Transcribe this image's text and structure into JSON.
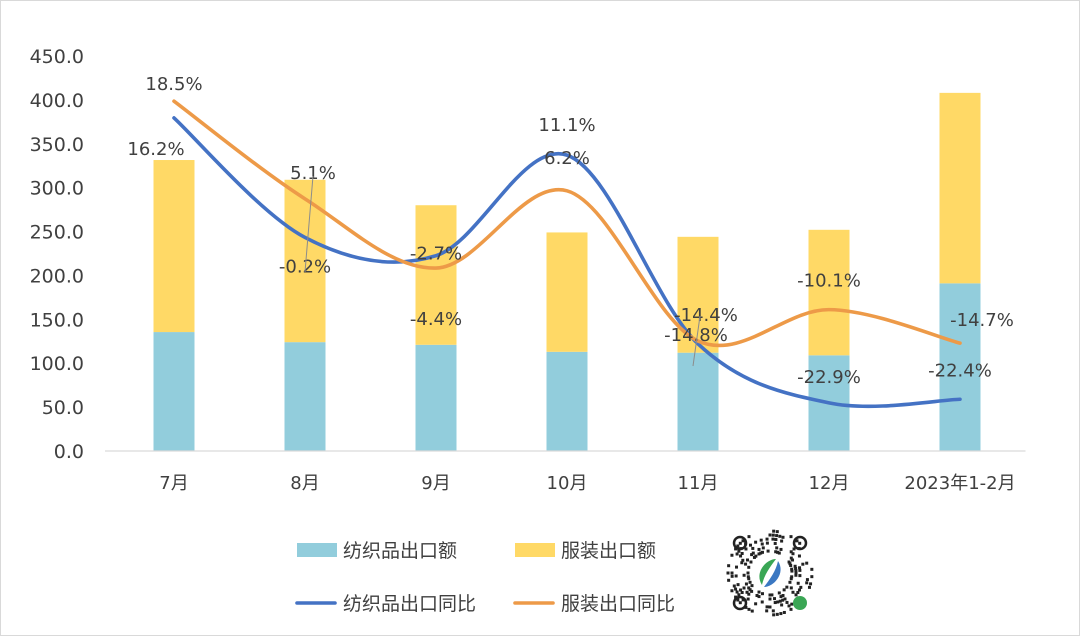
{
  "chart_data": {
    "type": "bar+line",
    "title": "",
    "xlabel": "",
    "ylabel": "",
    "ylim": [
      0,
      450
    ],
    "yticks": [
      "0.0",
      "50.0",
      "100.0",
      "150.0",
      "200.0",
      "250.0",
      "300.0",
      "350.0",
      "400.0",
      "450.0"
    ],
    "y2lim": [
      -29.5,
      24.7
    ],
    "y2_visible": false,
    "grid": false,
    "legend_position": "bottom",
    "categories": [
      "7月",
      "8月",
      "9月",
      "10月",
      "11月",
      "12月",
      "2023年1-2月"
    ],
    "bar_series": [
      {
        "name": "纺织品出口额",
        "color": "#92CDDC",
        "values": [
          135.5,
          124,
          121,
          113,
          112,
          109,
          191
        ]
      },
      {
        "name": "服装出口额",
        "color": "#FFD966",
        "values": [
          196,
          185,
          159,
          136,
          132,
          143,
          217
        ]
      }
    ],
    "line_series": [
      {
        "name": "纺织品出口同比",
        "color": "#4472C4",
        "values": [
          16.2,
          -0.2,
          -2.7,
          11.1,
          -14.8,
          -22.9,
          -22.4
        ],
        "labels": [
          "16.2%",
          "-0.2%",
          "-2.7%",
          "11.1%",
          "-14.8%",
          "-22.9%",
          "-22.4%"
        ]
      },
      {
        "name": "服装出口同比",
        "color": "#ED9A48",
        "values": [
          18.5,
          5.1,
          -4.4,
          6.2,
          -14.4,
          -10.1,
          -14.7
        ],
        "labels": [
          "18.5%",
          "5.1%",
          "-4.4%",
          "6.2%",
          "-14.4%",
          "-10.1%",
          "-14.7%"
        ]
      }
    ],
    "stacked": true,
    "smooth_lines": true
  },
  "qr_code": {
    "icon": "qr-code-icon"
  }
}
